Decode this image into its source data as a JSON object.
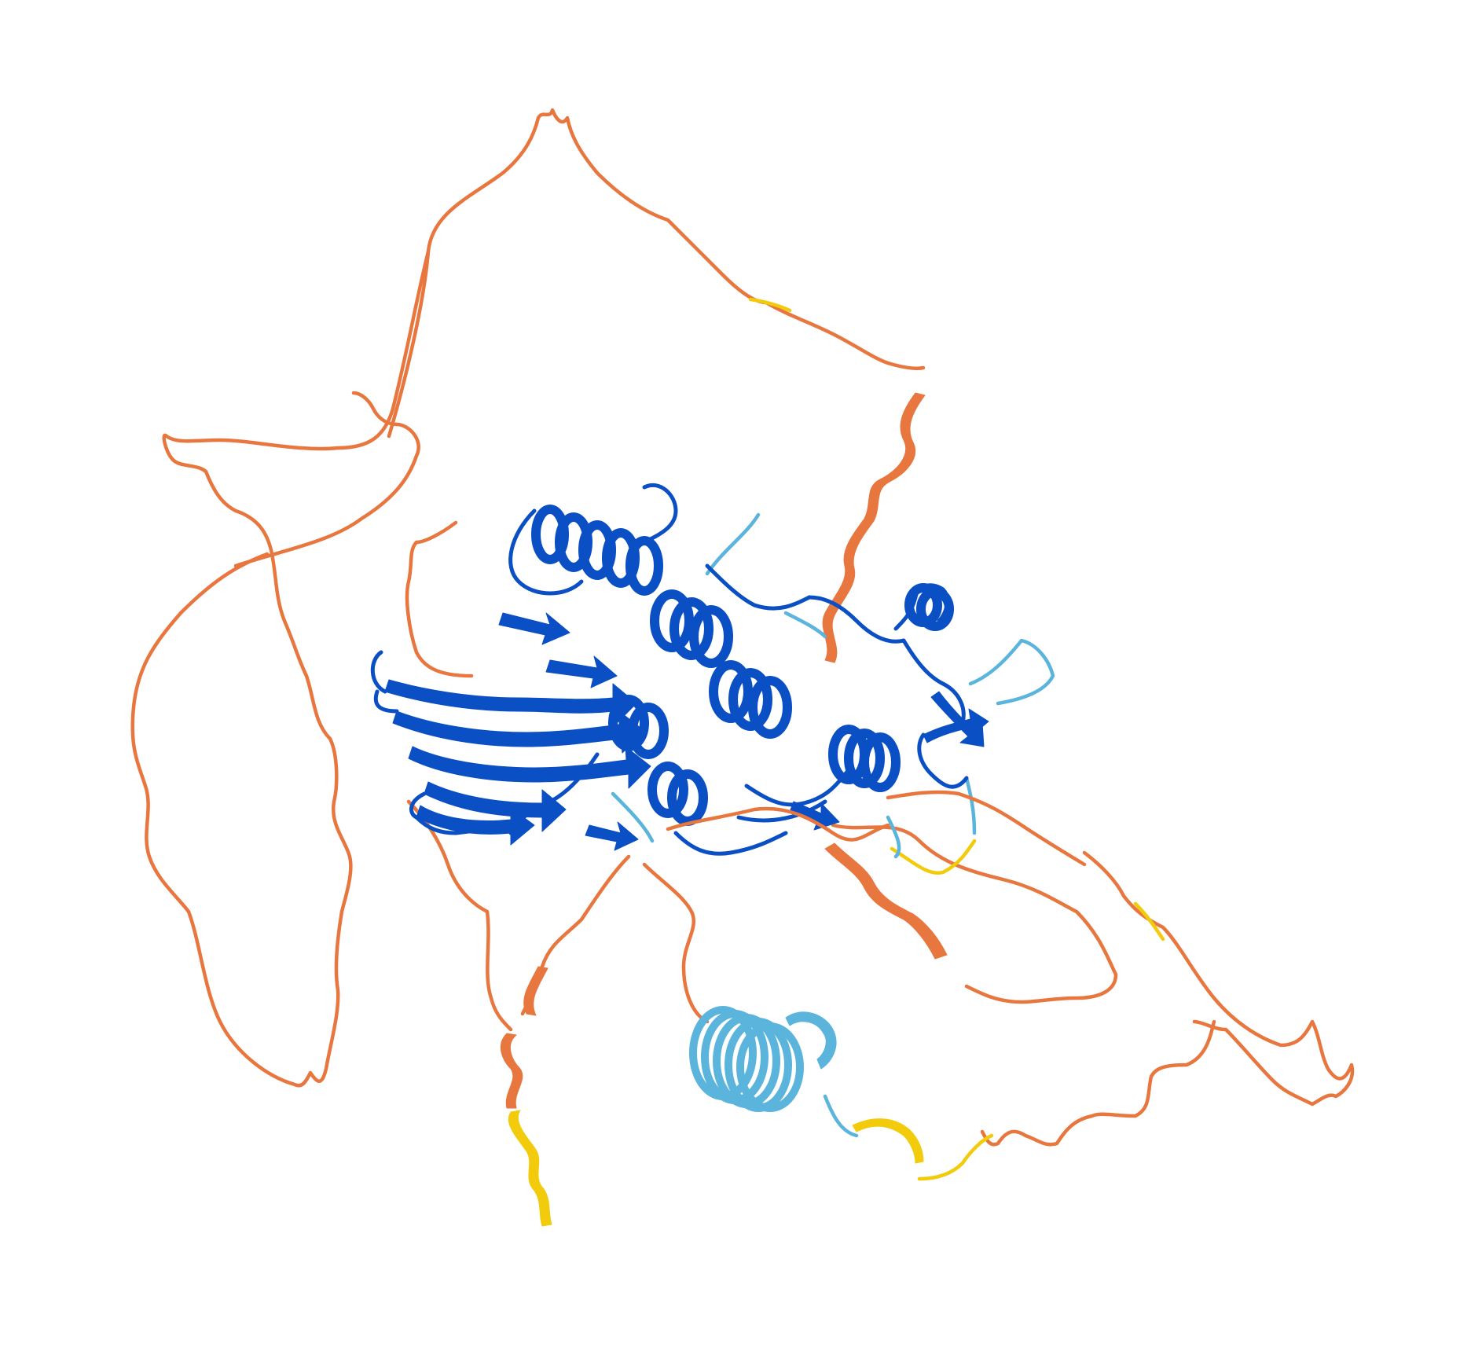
{
  "image": {
    "kind": "protein-structure-cartoon",
    "background": "#ffffff"
  },
  "colors": {
    "very_high_confidence": "#0a4fc4",
    "confident": "#5ab4dc",
    "low_confidence": "#f2cc0c",
    "very_low_confidence": "#e8773f"
  }
}
